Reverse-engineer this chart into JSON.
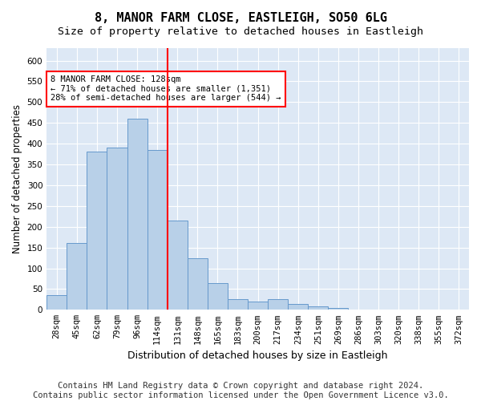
{
  "title1": "8, MANOR FARM CLOSE, EASTLEIGH, SO50 6LG",
  "title2": "Size of property relative to detached houses in Eastleigh",
  "xlabel": "Distribution of detached houses by size in Eastleigh",
  "ylabel": "Number of detached properties",
  "bins": [
    "28sqm",
    "45sqm",
    "62sqm",
    "79sqm",
    "96sqm",
    "114sqm",
    "131sqm",
    "148sqm",
    "165sqm",
    "183sqm",
    "200sqm",
    "217sqm",
    "234sqm",
    "251sqm",
    "269sqm",
    "286sqm",
    "303sqm",
    "320sqm",
    "338sqm",
    "355sqm",
    "372sqm"
  ],
  "values": [
    35,
    160,
    380,
    390,
    460,
    385,
    215,
    125,
    65,
    25,
    20,
    25,
    15,
    8,
    5,
    0,
    0,
    0,
    0,
    0,
    0
  ],
  "bar_color": "#b8d0e8",
  "bar_edge_color": "#6699cc",
  "vline_idx": 6,
  "vline_color": "red",
  "annotation_text": "8 MANOR FARM CLOSE: 128sqm\n← 71% of detached houses are smaller (1,351)\n28% of semi-detached houses are larger (544) →",
  "ylim": [
    0,
    630
  ],
  "yticks": [
    0,
    50,
    100,
    150,
    200,
    250,
    300,
    350,
    400,
    450,
    500,
    550,
    600
  ],
  "background_color": "#dde8f5",
  "footer_text": "Contains HM Land Registry data © Crown copyright and database right 2024.\nContains public sector information licensed under the Open Government Licence v3.0.",
  "title1_fontsize": 11,
  "title2_fontsize": 9.5,
  "xlabel_fontsize": 9,
  "ylabel_fontsize": 8.5,
  "footer_fontsize": 7.5,
  "tick_fontsize": 7.5
}
